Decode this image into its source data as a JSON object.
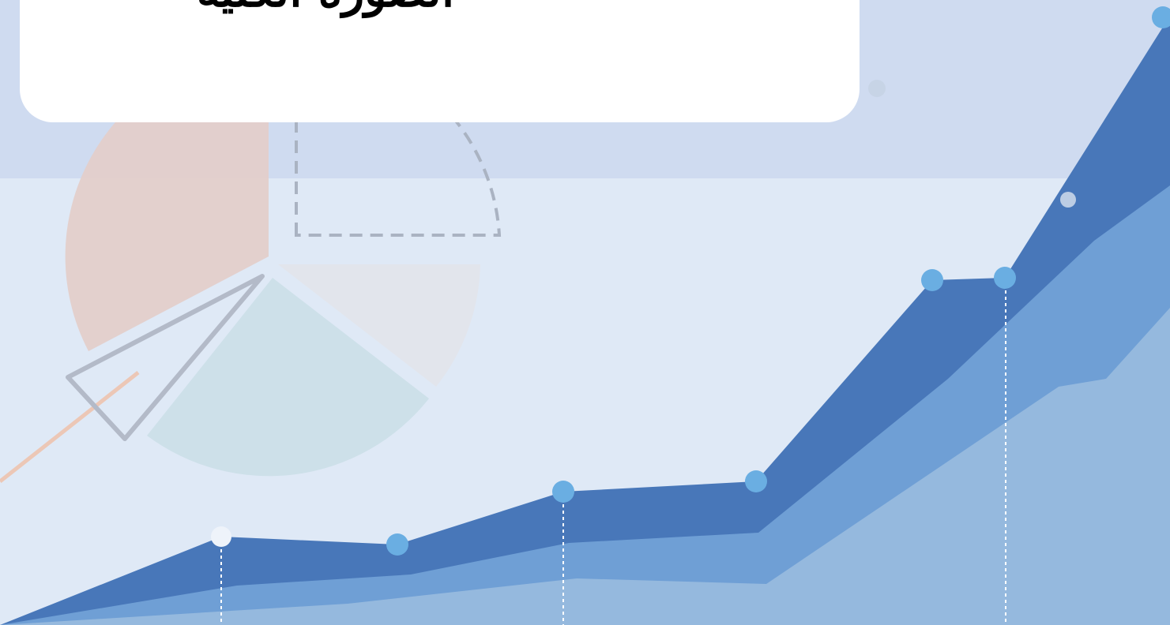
{
  "header": {
    "title": "الصورة الكلية"
  }
}
